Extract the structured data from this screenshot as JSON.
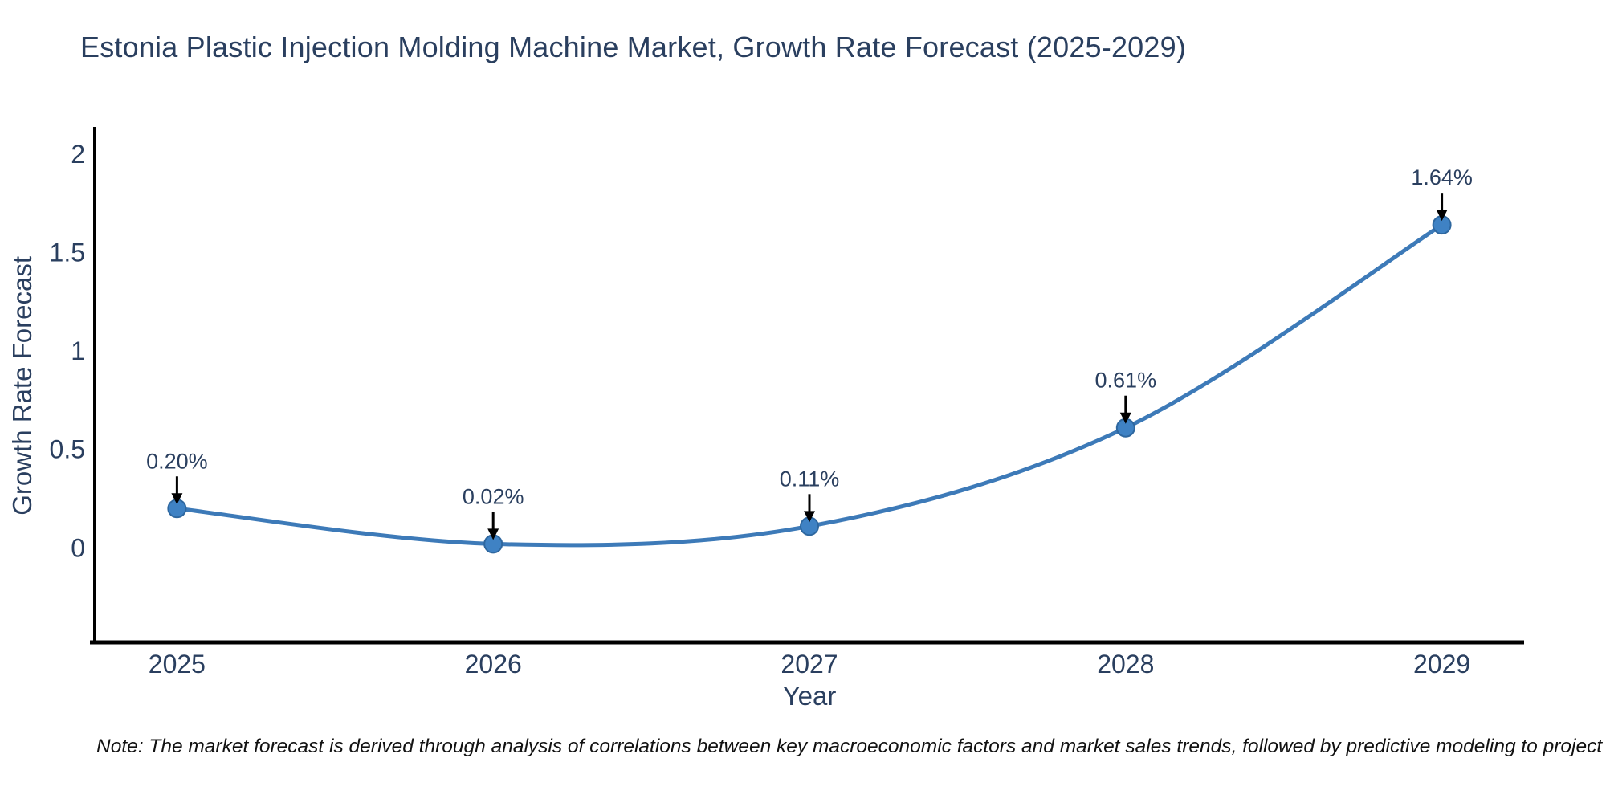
{
  "title": "Estonia Plastic Injection Molding Machine Market, Growth Rate Forecast (2025-2029)",
  "note": "Note: The market forecast is derived through analysis of correlations between key macroeconomic factors and market sales trends, followed by predictive modeling to project future sales",
  "colors": {
    "line": "#3d7ab8",
    "marker_fill": "#3f82c4",
    "marker_edge": "#2e679f",
    "text": "#2a3f5f",
    "axis": "#000000",
    "annotation": "#2a3f5f",
    "arrow": "#000000"
  },
  "chart_data": {
    "type": "line",
    "title": "Estonia Plastic Injection Molding Machine Market, Growth Rate Forecast (2025-2029)",
    "xlabel": "Year",
    "ylabel": "Growth Rate Forecast",
    "x": [
      2025,
      2026,
      2027,
      2028,
      2029
    ],
    "y": [
      0.2,
      0.02,
      0.11,
      0.61,
      1.64
    ],
    "point_labels": [
      "0.20%",
      "0.02%",
      "0.11%",
      "0.61%",
      "1.64%"
    ],
    "x_tick_labels": [
      "2025",
      "2026",
      "2027",
      "2028",
      "2029"
    ],
    "y_ticks": [
      0,
      0.5,
      1,
      1.5,
      2
    ],
    "y_tick_labels": [
      "0",
      "0.5",
      "1",
      "1.5",
      "2"
    ],
    "xlim": [
      2024.74,
      2029.26
    ],
    "ylim": [
      -0.48,
      2.13
    ],
    "line_shape": "spline",
    "grid": false,
    "legend": "none"
  }
}
